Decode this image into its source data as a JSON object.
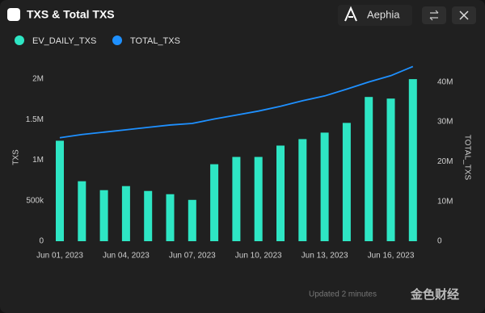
{
  "header": {
    "title": "TXS & Total TXS",
    "brand": "Aephia"
  },
  "footer": {
    "updated": "Updated 2 minutes",
    "watermark": "金色财经"
  },
  "chart_data": {
    "type": "bar_line",
    "categories": [
      "Jun 01, 2023",
      null,
      null,
      "Jun 04, 2023",
      null,
      null,
      "Jun 07, 2023",
      null,
      null,
      "Jun 10, 2023",
      null,
      null,
      "Jun 13, 2023",
      null,
      null,
      "Jun 16, 2023",
      null
    ],
    "series": [
      {
        "name": "EV_DAILY_TXS",
        "color": "#2ee6c4",
        "type": "bar",
        "values": [
          1240000,
          740000,
          630000,
          680000,
          620000,
          580000,
          510000,
          950000,
          1040000,
          1040000,
          1180000,
          1260000,
          1340000,
          1460000,
          1780000,
          1760000,
          2000000
        ]
      },
      {
        "name": "TOTAL_TXS",
        "color": "#1e90ff",
        "type": "line",
        "axis": "y2",
        "values": [
          26000000,
          26800000,
          27400000,
          28000000,
          28600000,
          29200000,
          29600000,
          30700000,
          31700000,
          32700000,
          33900000,
          35300000,
          36500000,
          38200000,
          40000000,
          41600000,
          43900000
        ]
      }
    ],
    "ylabel": "TXS",
    "y2label": "TOTAL_TXS",
    "ylim": [
      0,
      2210000
    ],
    "yticks": [
      0,
      {
        "value": 500000,
        "label": "500k"
      },
      {
        "value": 1000000,
        "label": "1M"
      },
      {
        "value": 1500000,
        "label": "1.5M"
      },
      {
        "value": 2000000,
        "label": "2M"
      }
    ],
    "y2lim": [
      0,
      45000000
    ],
    "y2ticks": [
      0,
      {
        "value": 10000000,
        "label": "10M"
      },
      {
        "value": 20000000,
        "label": "20M"
      },
      {
        "value": 30000000,
        "label": "30M"
      },
      {
        "value": 40000000,
        "label": "40M"
      }
    ],
    "grid": false
  }
}
